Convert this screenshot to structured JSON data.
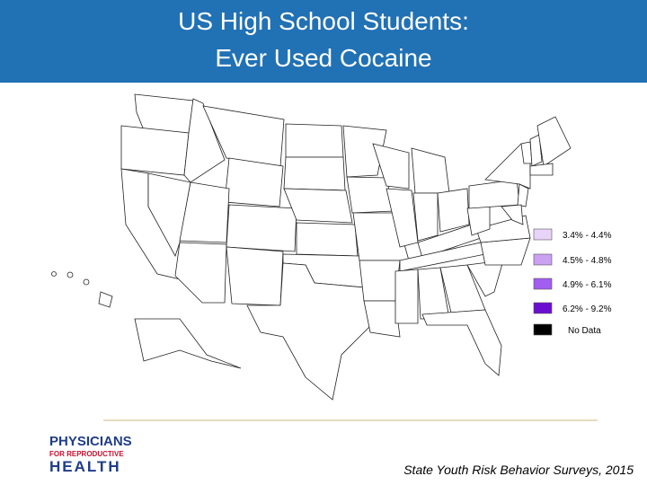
{
  "header": {
    "title_line1": "US High School Students:",
    "title_line2": "Ever Used Cocaine"
  },
  "legend": [
    {
      "label": "3.4% - 4.4%",
      "color": "#e8d4f7"
    },
    {
      "label": "4.5% - 4.8%",
      "color": "#c9a2f2"
    },
    {
      "label": "4.9% - 6.1%",
      "color": "#a15ef0"
    },
    {
      "label": "6.2% - 9.2%",
      "color": "#6a0fd0"
    },
    {
      "label": "No Data",
      "color": "#000000"
    }
  ],
  "source": "State Youth Risk Behavior Surveys, 2015",
  "logo": {
    "line1": "PHYSICIANS",
    "line2": "FOR REPRODUCTIVE",
    "line3": "HEALTH"
  }
}
